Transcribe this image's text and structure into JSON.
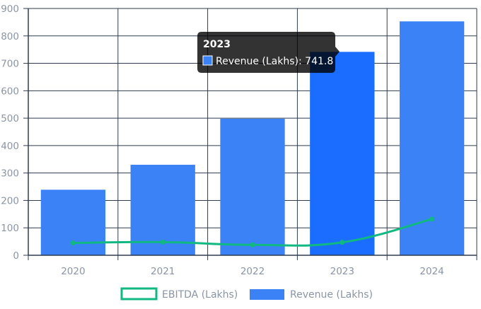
{
  "chart_data": {
    "type": "bar",
    "categories": [
      "2020",
      "2021",
      "2022",
      "2023",
      "2024"
    ],
    "series": [
      {
        "name": "Revenue (Lakhs)",
        "kind": "bar",
        "color": "#3b82f6",
        "hover_color": "#1a6dff",
        "values": [
          239,
          330,
          498,
          741.8,
          853
        ]
      },
      {
        "name": "EBITDA (Lakhs)",
        "kind": "line",
        "color": "#10b981",
        "values": [
          45,
          48,
          38,
          47,
          132
        ]
      }
    ],
    "y_ticks": [
      "0",
      "100",
      "200",
      "300",
      "400",
      "500",
      "600",
      "700",
      "800",
      "900"
    ],
    "ylim": [
      0,
      900
    ],
    "grid": true,
    "legend": {
      "placement": "bottom-center",
      "items": [
        "EBITDA (Lakhs)",
        "Revenue (Lakhs)"
      ]
    },
    "tooltip": {
      "title": "2023",
      "text": "Revenue (Lakhs): 741.8",
      "category_index": 3
    }
  }
}
